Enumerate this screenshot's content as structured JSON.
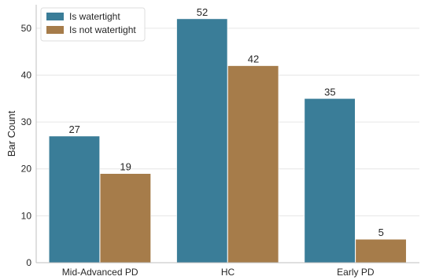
{
  "chart_data": {
    "type": "bar",
    "title": "",
    "xlabel": "",
    "ylabel": "Bar Count",
    "ylim": [
      0,
      55
    ],
    "yticks": [
      0,
      10,
      20,
      30,
      40,
      50
    ],
    "categories": [
      "Mid-Advanced PD",
      "HC",
      "Early PD"
    ],
    "series": [
      {
        "name": "Is watertight",
        "color": "#3a7d98",
        "values": [
          27,
          52,
          35
        ]
      },
      {
        "name": "Is not watertight",
        "color": "#a67c4a",
        "values": [
          19,
          42,
          5
        ]
      }
    ],
    "grid": true,
    "legend": {
      "position": "top-left"
    }
  }
}
